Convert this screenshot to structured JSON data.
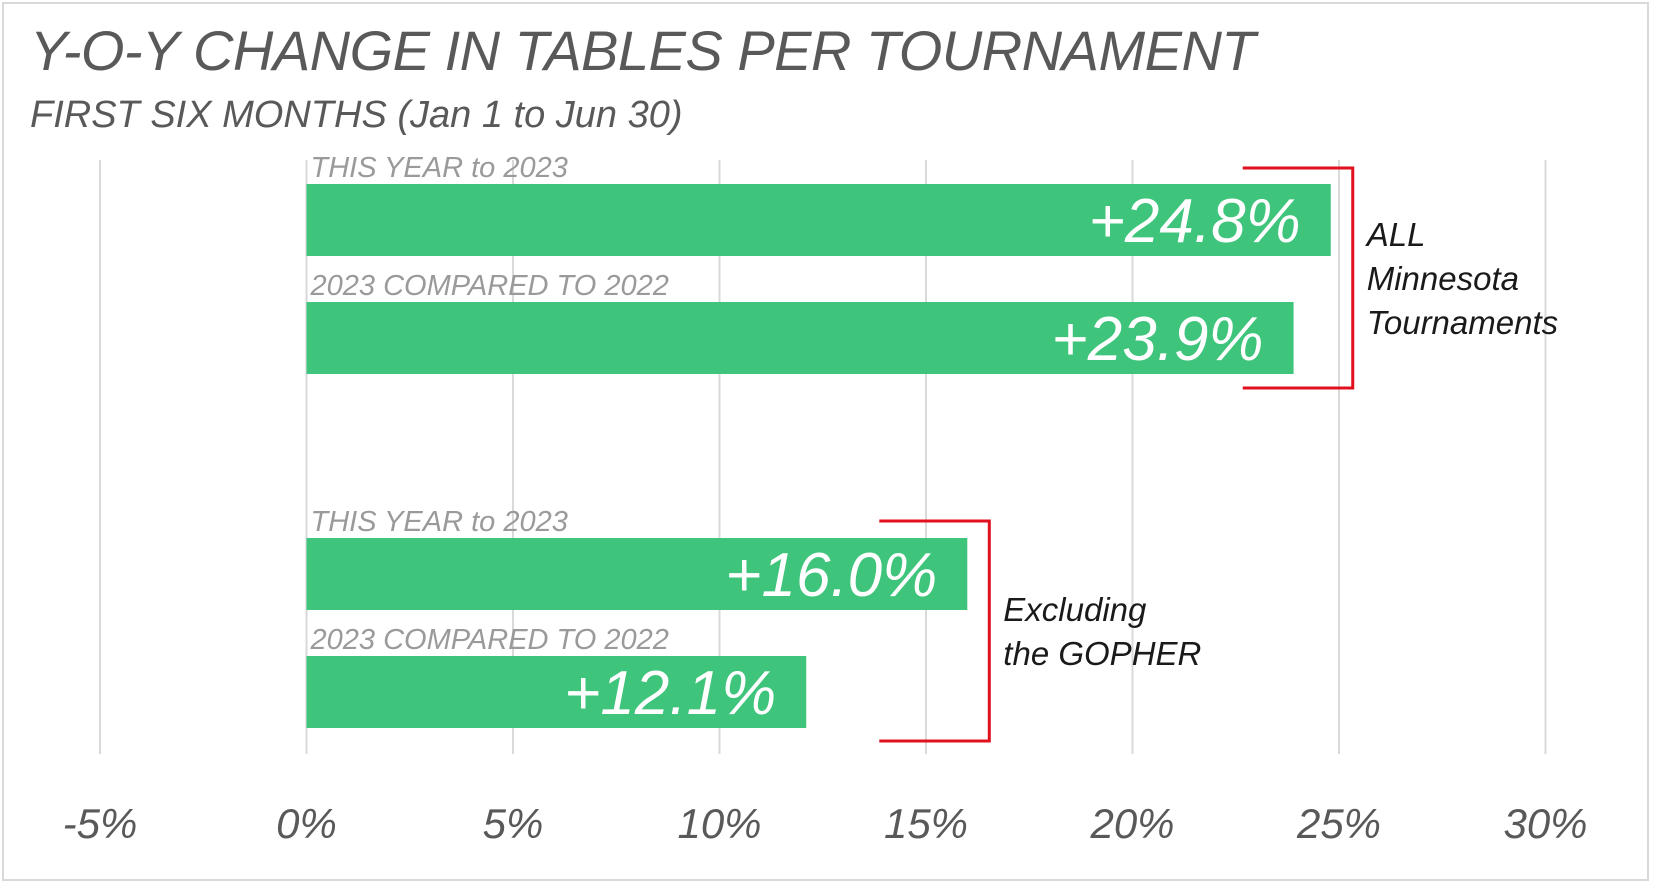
{
  "chart_data": {
    "type": "bar",
    "orientation": "horizontal",
    "title": "Y-O-Y CHANGE IN TABLES PER TOURNAMENT",
    "subtitle": "FIRST SIX MONTHS (Jan 1 to Jun 30)",
    "xlim": [
      -5,
      30
    ],
    "x_ticks": [
      -5,
      0,
      5,
      10,
      15,
      20,
      25,
      30
    ],
    "x_tick_labels": [
      "-5%",
      "0%",
      "5%",
      "10%",
      "15%",
      "20%",
      "25%",
      "30%"
    ],
    "grid": true,
    "bar_color": "#3fc47b",
    "groups": [
      {
        "bracket_label": [
          "ALL",
          "Minnesota",
          "Tournaments"
        ],
        "bars": [
          {
            "label": "THIS YEAR to 2023",
            "value": 24.8,
            "value_label": "+24.8%"
          },
          {
            "label": "2023 COMPARED TO 2022",
            "value": 23.9,
            "value_label": "+23.9%"
          }
        ]
      },
      {
        "bracket_label": [
          "Excluding",
          "the GOPHER"
        ],
        "bars": [
          {
            "label": "THIS YEAR to 2023",
            "value": 16.0,
            "value_label": "+16.0%"
          },
          {
            "label": "2023 COMPARED TO 2022",
            "value": 12.1,
            "value_label": "+12.1%"
          }
        ]
      }
    ],
    "bracket_color": "#e0101e"
  }
}
